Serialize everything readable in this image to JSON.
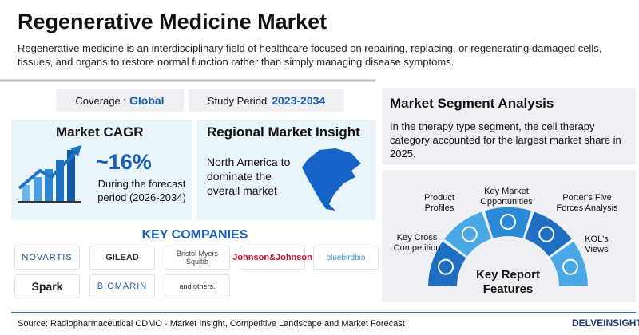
{
  "header": {
    "title": "Regenerative Medicine Market",
    "description": "Regenerative medicine is an interdisciplinary field of healthcare focused on repairing, replacing, or regenerating damaged cells, tissues, and organs to restore normal function rather than simply managing disease symptoms."
  },
  "coverage": {
    "label": "Coverage :",
    "value": "Global"
  },
  "study_period": {
    "label": "Study Period",
    "value": "2023-2034"
  },
  "cagr": {
    "title": "Market CAGR",
    "value": "~16%",
    "note": "During the forecast period (2026-2034)"
  },
  "regional": {
    "title": "Regional Market Insight",
    "text": "North America to dominate the overall market"
  },
  "segment": {
    "title": "Market Segment Analysis",
    "text": "In the therapy type segment, the cell therapy category accounted for the largest market share in 2025."
  },
  "companies": {
    "title": "KEY COMPANIES",
    "items": [
      "NOVARTIS",
      "GILEAD",
      "Bristol Myers Squibb",
      "Johnson&Johnson",
      "bluebirdbio",
      "Spark",
      "BIOMARIN",
      "and others."
    ]
  },
  "features": {
    "center": "Key Report Features",
    "items": [
      "Key Cross Competition",
      "Product Profiles",
      "Key Market Opportunities",
      "Porter's Five Forces Analysis",
      "KOL's Views"
    ]
  },
  "source": "Source: Radiopharmaceutical CDMO - Market Insight, Competitive Landscape and Market Forecast",
  "brand": "DELVEINSIGHT"
}
